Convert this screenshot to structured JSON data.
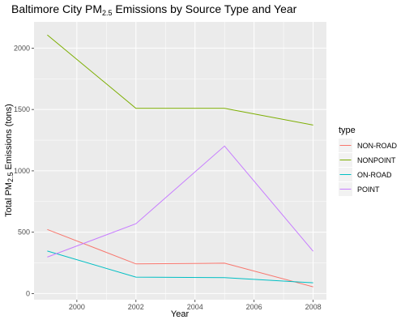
{
  "chart_data": {
    "type": "line",
    "title": {
      "prefix": "Baltimore City PM",
      "sub": "2.5",
      "suffix": " Emissions by Source Type and Year"
    },
    "xlabel": "Year",
    "ylabel": {
      "prefix": "Total PM",
      "sub": "2.5",
      "suffix": " Emissions (tons)"
    },
    "x": [
      1999,
      2002,
      2005,
      2008
    ],
    "xlim": [
      1998.55,
      2008.45
    ],
    "ylim": [
      -50,
      2214
    ],
    "xticks": [
      2000,
      2002,
      2004,
      2006,
      2008
    ],
    "yticks": [
      0,
      500,
      1000,
      1500,
      2000
    ],
    "grid": true,
    "legend_position": "right",
    "legend_title": "type",
    "series": [
      {
        "name": "NON-ROAD",
        "color": "#F8766D",
        "values": [
          522,
          242,
          248,
          55
        ]
      },
      {
        "name": "NONPOINT",
        "color": "#7CAE00",
        "values": [
          2108,
          1510,
          1510,
          1373
        ]
      },
      {
        "name": "ON-ROAD",
        "color": "#00BFC4",
        "values": [
          347,
          134,
          130,
          88
        ]
      },
      {
        "name": "POINT",
        "color": "#C77CFF",
        "values": [
          297,
          569,
          1202,
          345
        ]
      }
    ]
  }
}
